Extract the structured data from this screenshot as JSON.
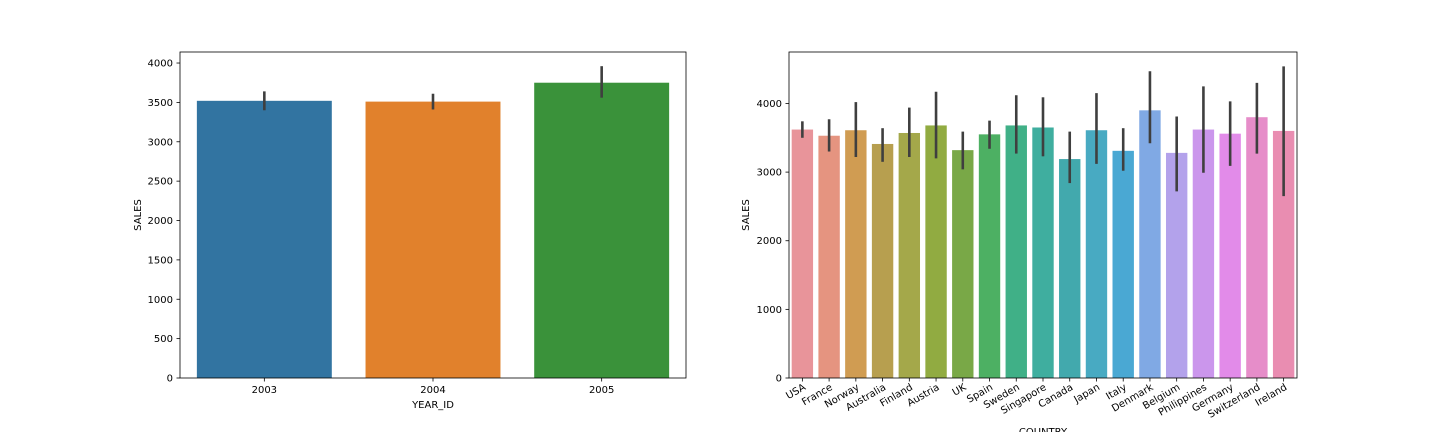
{
  "chart_data": [
    {
      "type": "bar",
      "xlabel": "YEAR_ID",
      "ylabel": "SALES",
      "categories": [
        "2003",
        "2004",
        "2005"
      ],
      "values": [
        3520,
        3510,
        3750
      ],
      "error_low": [
        3400,
        3410,
        3560
      ],
      "error_high": [
        3640,
        3610,
        3960
      ],
      "colors": [
        "#3274a1",
        "#e1812c",
        "#3a923a"
      ],
      "ylim": [
        0,
        4140
      ],
      "yticks": [
        0,
        500,
        1000,
        1500,
        2000,
        2500,
        3000,
        3500,
        4000
      ],
      "grid": false
    },
    {
      "type": "bar",
      "xlabel": "COUNTRY",
      "ylabel": "SALES",
      "categories": [
        "USA",
        "France",
        "Norway",
        "Australia",
        "Finland",
        "Austria",
        "UK",
        "Spain",
        "Sweden",
        "Singapore",
        "Canada",
        "Japan",
        "Italy",
        "Denmark",
        "Belgium",
        "Philippines",
        "Germany",
        "Switzerland",
        "Ireland"
      ],
      "values": [
        3620,
        3530,
        3610,
        3410,
        3570,
        3680,
        3320,
        3550,
        3680,
        3650,
        3190,
        3610,
        3310,
        3900,
        3280,
        3620,
        3560,
        3800,
        3600
      ],
      "error_low": [
        3500,
        3300,
        3220,
        3150,
        3220,
        3200,
        3040,
        3340,
        3270,
        3230,
        2840,
        3120,
        3020,
        3420,
        2720,
        2990,
        3090,
        3270,
        2650
      ],
      "error_high": [
        3740,
        3770,
        4020,
        3640,
        3940,
        4170,
        3590,
        3750,
        4120,
        4090,
        3590,
        4150,
        3640,
        4470,
        3810,
        4250,
        4030,
        4300,
        4540
      ],
      "colors": [
        "#e8949a",
        "#e59480",
        "#d09c52",
        "#b79f4f",
        "#a4a84a",
        "#91ab41",
        "#79a847",
        "#4db063",
        "#40b087",
        "#3fae9f",
        "#42a9ad",
        "#48aac2",
        "#4aa8d3",
        "#80a9e4",
        "#b3a2eb",
        "#cb96ec",
        "#e28be9",
        "#e68dc9",
        "#e98db1"
      ],
      "ylim": [
        0,
        4750
      ],
      "yticks": [
        0,
        1000,
        2000,
        3000,
        4000
      ],
      "grid": false
    }
  ]
}
